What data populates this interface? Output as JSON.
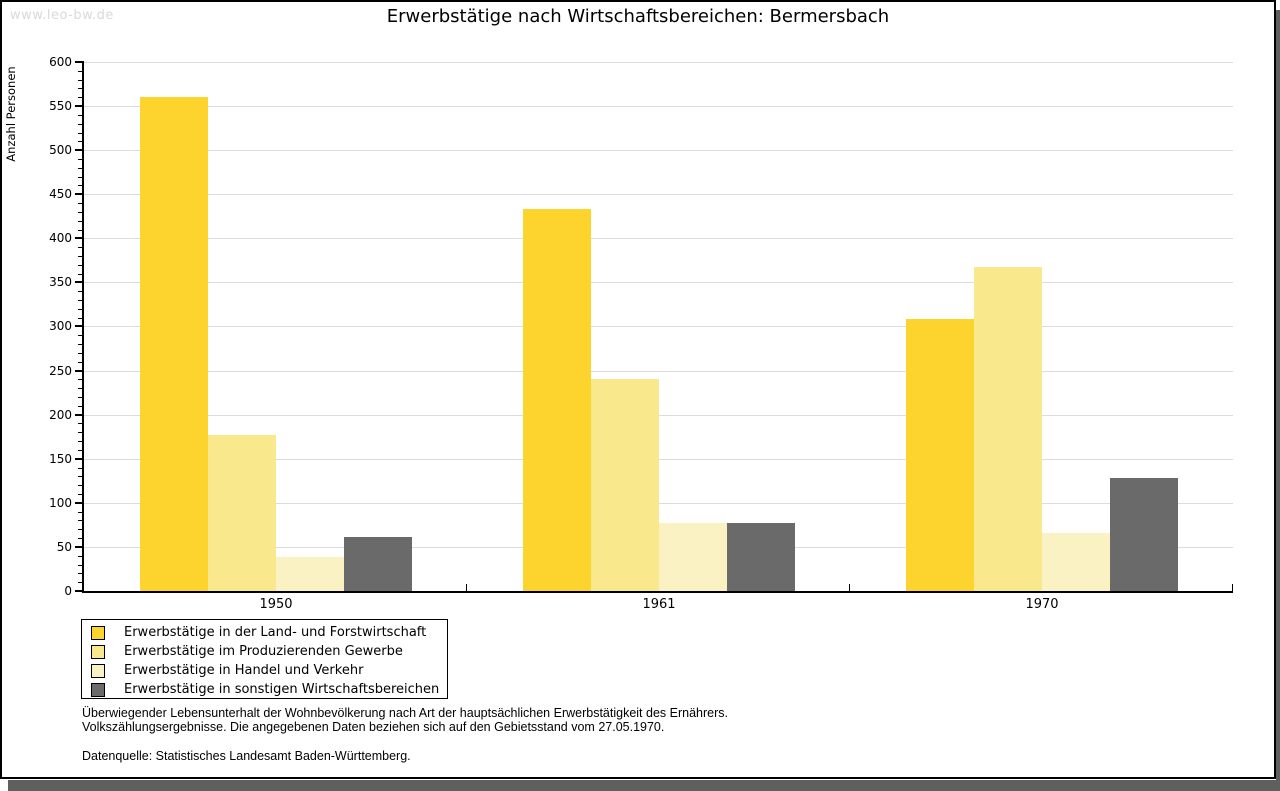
{
  "watermark": "www.leo-bw.de",
  "chart_data": {
    "type": "bar",
    "title": "Erwerbstätige nach Wirtschaftsbereichen: Bermersbach",
    "ylabel": "Anzahl Personen",
    "xlabel": "",
    "categories": [
      "1950",
      "1961",
      "1970"
    ],
    "series": [
      {
        "name": "Erwerbstätige in der Land- und Forstwirtschaft",
        "color": "#fcd42d",
        "values": [
          560,
          433,
          308
        ]
      },
      {
        "name": "Erwerbstätige im Produzierenden Gewerbe",
        "color": "#fae88c",
        "values": [
          177,
          240,
          367
        ]
      },
      {
        "name": "Erwerbstätige in Handel und Verkehr",
        "color": "#fbf2c4",
        "values": [
          38,
          77,
          66
        ]
      },
      {
        "name": "Erwerbstätige in sonstigen Wirtschaftsbereichen",
        "color": "#6a6a6a",
        "values": [
          61,
          77,
          128
        ]
      }
    ],
    "ylim": [
      0,
      600
    ],
    "ytick_step": 50,
    "y_minor_tick_step": 10,
    "grid": true,
    "gridline_color": "#dcdcdc",
    "legend_position": "bottom-left"
  },
  "footnotes": {
    "line1": "Überwiegender Lebensunterhalt der Wohnbevölkerung nach Art der hauptsächlichen Erwerbstätigkeit des Ernährers.",
    "line2": "Volkszählungsergebnisse. Die angegebenen Daten beziehen sich auf den Gebietsstand vom 27.05.1970.",
    "source": "Datenquelle: Statistisches Landesamt Baden-Württemberg."
  }
}
